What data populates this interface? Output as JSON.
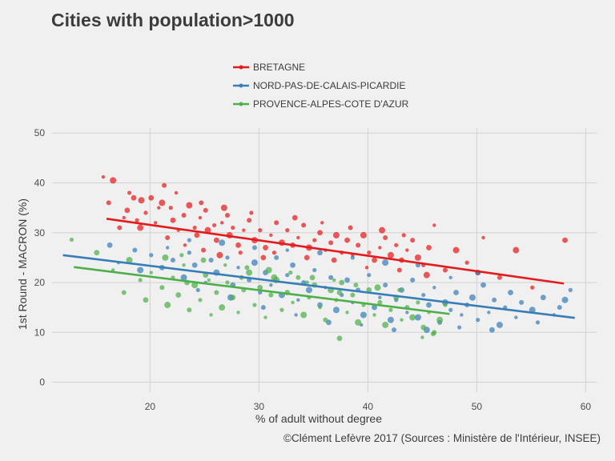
{
  "chart_data": {
    "type": "scatter",
    "title": "Cities with population>1000",
    "xlabel": "% of adult without degree",
    "ylabel": "1st Round - MACRON (%)",
    "caption": "©Clément Lefèvre 2017 (Sources : Ministère de l'Intérieur, INSEE)",
    "xlim": [
      11,
      61
    ],
    "ylim": [
      -2,
      51
    ],
    "x_ticks": [
      "20",
      "30",
      "40",
      "50",
      "60"
    ],
    "y_ticks": [
      "0",
      "10",
      "20",
      "30",
      "40",
      "50"
    ],
    "grid": true,
    "legend_position": "top",
    "series": [
      {
        "name": "BRETAGNE",
        "color": "#e41a1c",
        "trend": {
          "x": [
            16,
            58
          ],
          "y": [
            32.8,
            19.8
          ]
        },
        "points": [
          [
            15.7,
            41.2
          ],
          [
            16.2,
            36
          ],
          [
            16.6,
            40.5
          ],
          [
            18.1,
            38
          ],
          [
            18.5,
            37
          ],
          [
            17.6,
            33
          ],
          [
            17.2,
            31
          ],
          [
            19.2,
            36.5
          ],
          [
            19.6,
            34
          ],
          [
            20.1,
            37
          ],
          [
            20.5,
            32
          ],
          [
            21.3,
            39.5
          ],
          [
            21.1,
            36
          ],
          [
            21.9,
            35
          ],
          [
            22.1,
            32.5
          ],
          [
            22.6,
            30.5
          ],
          [
            23.1,
            33.5
          ],
          [
            23.6,
            35.5
          ],
          [
            24.1,
            31
          ],
          [
            24.3,
            29.5
          ],
          [
            24.6,
            33
          ],
          [
            25.1,
            34.5
          ],
          [
            25.3,
            30.5
          ],
          [
            25.9,
            31.5
          ],
          [
            26.1,
            28.5
          ],
          [
            26.6,
            32
          ],
          [
            27.1,
            33.5
          ],
          [
            27.3,
            29.5
          ],
          [
            27.6,
            31
          ],
          [
            28.1,
            27.5
          ],
          [
            28.6,
            30.5
          ],
          [
            29.1,
            32.5
          ],
          [
            29.6,
            28.5
          ],
          [
            30.1,
            30.5
          ],
          [
            30.6,
            27
          ],
          [
            31.1,
            29.5
          ],
          [
            31.6,
            32
          ],
          [
            32.1,
            28
          ],
          [
            32.6,
            30.5
          ],
          [
            33.1,
            27.5
          ],
          [
            33.6,
            29
          ],
          [
            34.1,
            31.5
          ],
          [
            34.6,
            27
          ],
          [
            35.1,
            28.5
          ],
          [
            35.6,
            30
          ],
          [
            36.1,
            26.5
          ],
          [
            36.6,
            28
          ],
          [
            37.1,
            29.5
          ],
          [
            37.6,
            26
          ],
          [
            38.1,
            28.5
          ],
          [
            38.6,
            25.5
          ],
          [
            39.1,
            27.5
          ],
          [
            39.6,
            29.5
          ],
          [
            40.1,
            26
          ],
          [
            40.6,
            24.5
          ],
          [
            41.1,
            27
          ],
          [
            41.6,
            29
          ],
          [
            42.1,
            25.5
          ],
          [
            42.6,
            27.5
          ],
          [
            43.1,
            24.5
          ],
          [
            43.6,
            26.5
          ],
          [
            44.1,
            28.5
          ],
          [
            44.6,
            25
          ],
          [
            45.1,
            23.5
          ],
          [
            45.6,
            27
          ],
          [
            46.1,
            31.5
          ],
          [
            47.1,
            22.5
          ],
          [
            48.1,
            26.5
          ],
          [
            49.1,
            24
          ],
          [
            50.1,
            22
          ],
          [
            50.6,
            29
          ],
          [
            52.1,
            21
          ],
          [
            53.6,
            26.5
          ],
          [
            55.1,
            19
          ],
          [
            58.1,
            28.5
          ],
          [
            23.2,
            27.5
          ],
          [
            24.9,
            26.5
          ],
          [
            26.4,
            25.5
          ],
          [
            28.3,
            26
          ],
          [
            30.4,
            25
          ],
          [
            22.4,
            38
          ],
          [
            21.6,
            29
          ],
          [
            19.1,
            31
          ],
          [
            18.8,
            32.5
          ],
          [
            17.9,
            34.5
          ],
          [
            20.8,
            35
          ],
          [
            24.7,
            36
          ],
          [
            26.8,
            35
          ],
          [
            29.3,
            34
          ],
          [
            33.3,
            33
          ],
          [
            35.8,
            32
          ],
          [
            38.4,
            31
          ],
          [
            41.3,
            30.5
          ],
          [
            43.3,
            29.5
          ],
          [
            36.9,
            24.5
          ],
          [
            39.9,
            23
          ],
          [
            42.9,
            22.5
          ],
          [
            45.4,
            21.5
          ],
          [
            31.4,
            26
          ],
          [
            34.4,
            25
          ]
        ]
      },
      {
        "name": "NORD-PAS-DE-CALAIS-PICARDIE",
        "color": "#377eb8",
        "trend": {
          "x": [
            12,
            59
          ],
          "y": [
            25.5,
            12.9
          ]
        },
        "points": [
          [
            16.3,
            27.5
          ],
          [
            17.1,
            24
          ],
          [
            18.6,
            26.5
          ],
          [
            19.1,
            22.5
          ],
          [
            20.1,
            25.5
          ],
          [
            21.1,
            23
          ],
          [
            21.6,
            27
          ],
          [
            22.1,
            24.5
          ],
          [
            23.1,
            21
          ],
          [
            23.6,
            26
          ],
          [
            24.1,
            23.5
          ],
          [
            25.1,
            20
          ],
          [
            25.6,
            24.5
          ],
          [
            26.1,
            22
          ],
          [
            27.1,
            25
          ],
          [
            27.6,
            19.5
          ],
          [
            28.1,
            23
          ],
          [
            29.1,
            20.5
          ],
          [
            29.6,
            24
          ],
          [
            30.1,
            18
          ],
          [
            30.6,
            22
          ],
          [
            31.1,
            19.5
          ],
          [
            31.6,
            25
          ],
          [
            32.1,
            17.5
          ],
          [
            32.6,
            21.5
          ],
          [
            33.1,
            23.5
          ],
          [
            33.6,
            16.5
          ],
          [
            34.1,
            20
          ],
          [
            34.6,
            18.5
          ],
          [
            35.1,
            22.5
          ],
          [
            35.6,
            15.5
          ],
          [
            36.1,
            19
          ],
          [
            36.6,
            21
          ],
          [
            37.1,
            14.5
          ],
          [
            37.6,
            17.5
          ],
          [
            38.1,
            20.5
          ],
          [
            38.6,
            16
          ],
          [
            39.1,
            18.5
          ],
          [
            39.6,
            13.5
          ],
          [
            40.1,
            21.5
          ],
          [
            40.6,
            15
          ],
          [
            41.1,
            17
          ],
          [
            41.6,
            19.5
          ],
          [
            42.1,
            12.5
          ],
          [
            42.6,
            16.5
          ],
          [
            43.1,
            18.5
          ],
          [
            43.6,
            14
          ],
          [
            44.1,
            20.5
          ],
          [
            44.6,
            13
          ],
          [
            45.1,
            17.5
          ],
          [
            45.6,
            15.5
          ],
          [
            46.1,
            19
          ],
          [
            46.6,
            12
          ],
          [
            47.1,
            16
          ],
          [
            47.6,
            14.5
          ],
          [
            48.1,
            18
          ],
          [
            48.6,
            13.5
          ],
          [
            49.1,
            15.5
          ],
          [
            49.6,
            17
          ],
          [
            50.1,
            12.5
          ],
          [
            50.6,
            19.5
          ],
          [
            51.1,
            14
          ],
          [
            51.6,
            16.5
          ],
          [
            52.1,
            11.5
          ],
          [
            52.6,
            15
          ],
          [
            53.1,
            18
          ],
          [
            53.6,
            13
          ],
          [
            54.1,
            16
          ],
          [
            55.1,
            14.5
          ],
          [
            55.6,
            12
          ],
          [
            56.1,
            17
          ],
          [
            57.1,
            13.5
          ],
          [
            57.6,
            15
          ],
          [
            58.1,
            16.5
          ],
          [
            58.6,
            18.5
          ],
          [
            50.1,
            22
          ],
          [
            47.6,
            21
          ],
          [
            44.6,
            23.5
          ],
          [
            41.6,
            24
          ],
          [
            38.6,
            25
          ],
          [
            35.6,
            26
          ],
          [
            32.6,
            26.5
          ],
          [
            29.6,
            27
          ],
          [
            26.6,
            28
          ],
          [
            23.6,
            28.5
          ],
          [
            36.4,
            12
          ],
          [
            39.4,
            11.5
          ],
          [
            42.4,
            10.5
          ],
          [
            45.4,
            10.5
          ],
          [
            48.4,
            11
          ],
          [
            51.4,
            10.5
          ],
          [
            33.4,
            13.5
          ],
          [
            30.4,
            15
          ],
          [
            27.4,
            17
          ],
          [
            24.4,
            18.5
          ]
        ]
      },
      {
        "name": "PROVENCE-ALPES-COTE D'AZUR",
        "color": "#4daf4a",
        "trend": {
          "x": [
            13,
            47.5
          ],
          "y": [
            23.1,
            13.7
          ]
        },
        "points": [
          [
            12.8,
            28.6
          ],
          [
            15.1,
            26
          ],
          [
            16.6,
            22.5
          ],
          [
            17.6,
            18
          ],
          [
            18.1,
            24.5
          ],
          [
            19.1,
            20.5
          ],
          [
            19.6,
            16.5
          ],
          [
            20.1,
            22
          ],
          [
            21.1,
            19
          ],
          [
            21.6,
            15.5
          ],
          [
            22.1,
            21
          ],
          [
            22.6,
            17.5
          ],
          [
            23.1,
            23.5
          ],
          [
            23.6,
            14.5
          ],
          [
            24.1,
            19.5
          ],
          [
            24.6,
            16.5
          ],
          [
            25.1,
            21.5
          ],
          [
            25.6,
            13.5
          ],
          [
            26.1,
            18
          ],
          [
            26.6,
            15
          ],
          [
            27.1,
            20
          ],
          [
            27.6,
            17
          ],
          [
            28.1,
            14
          ],
          [
            28.6,
            18.5
          ],
          [
            29.1,
            22
          ],
          [
            29.6,
            15.5
          ],
          [
            30.1,
            19
          ],
          [
            30.6,
            13
          ],
          [
            31.1,
            17.5
          ],
          [
            31.6,
            20.5
          ],
          [
            32.1,
            14.5
          ],
          [
            32.6,
            18
          ],
          [
            33.1,
            16
          ],
          [
            33.6,
            21
          ],
          [
            34.1,
            13.5
          ],
          [
            34.6,
            17
          ],
          [
            35.1,
            19.5
          ],
          [
            35.6,
            15
          ],
          [
            36.1,
            12.5
          ],
          [
            36.6,
            18.5
          ],
          [
            37.1,
            16.5
          ],
          [
            37.6,
            20
          ],
          [
            38.1,
            14
          ],
          [
            38.6,
            17.5
          ],
          [
            39.1,
            12
          ],
          [
            39.6,
            15.5
          ],
          [
            40.1,
            18.5
          ],
          [
            40.6,
            13.5
          ],
          [
            41.1,
            16
          ],
          [
            41.6,
            11.5
          ],
          [
            42.1,
            14.5
          ],
          [
            42.6,
            17
          ],
          [
            43.1,
            12.5
          ],
          [
            43.6,
            15
          ],
          [
            44.1,
            13
          ],
          [
            44.6,
            16
          ],
          [
            45.1,
            11
          ],
          [
            45.6,
            14
          ],
          [
            46.1,
            10
          ],
          [
            46.6,
            12.5
          ],
          [
            47.1,
            15.5
          ],
          [
            37.4,
            8.8
          ],
          [
            45,
            9
          ],
          [
            46,
            9.7
          ],
          [
            21.4,
            25
          ],
          [
            22.9,
            25.5
          ],
          [
            24.9,
            24.5
          ],
          [
            26.9,
            23.5
          ],
          [
            28.9,
            23
          ],
          [
            30.9,
            22.5
          ],
          [
            32.9,
            22
          ],
          [
            34.9,
            21
          ],
          [
            36.9,
            20.5
          ],
          [
            38.9,
            19.5
          ],
          [
            40.9,
            19
          ],
          [
            42.9,
            18.5
          ],
          [
            23.4,
            20
          ],
          [
            25.4,
            20.5
          ],
          [
            28.4,
            21
          ],
          [
            31.4,
            21
          ],
          [
            34.4,
            20
          ],
          [
            37.4,
            18
          ]
        ]
      }
    ]
  }
}
